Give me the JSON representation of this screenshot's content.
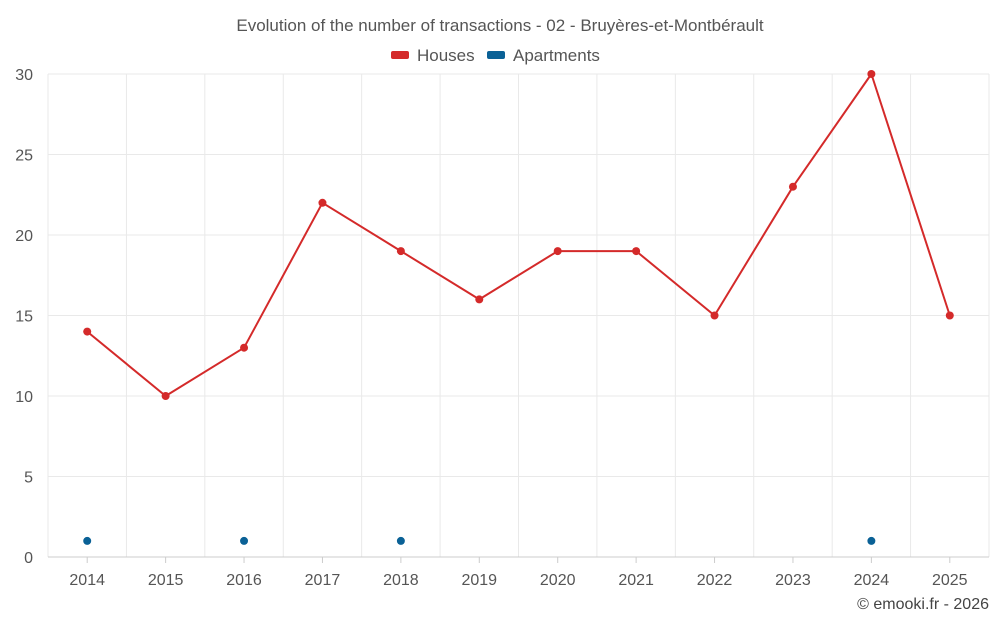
{
  "chart_data": {
    "type": "line",
    "title": "Evolution of the number of transactions - 02 - Bruyères-et-Montbérault",
    "x": [
      "2014",
      "2015",
      "2016",
      "2017",
      "2018",
      "2019",
      "2020",
      "2021",
      "2022",
      "2023",
      "2024",
      "2025"
    ],
    "series": [
      {
        "name": "Houses",
        "color": "#d42a2a",
        "values": [
          14,
          10,
          13,
          22,
          19,
          16,
          19,
          19,
          15,
          23,
          30,
          15
        ]
      },
      {
        "name": "Apartments",
        "color": "#0a6196",
        "values": [
          1,
          null,
          1,
          null,
          1,
          null,
          null,
          null,
          null,
          null,
          1,
          null
        ]
      }
    ],
    "ylim": [
      0,
      30
    ],
    "yticks": [
      "0",
      "5",
      "10",
      "15",
      "20",
      "25",
      "30"
    ],
    "xlabel": "",
    "ylabel": "",
    "grid": true,
    "legend": "top-center"
  },
  "credit": "© emooki.fr - 2026"
}
